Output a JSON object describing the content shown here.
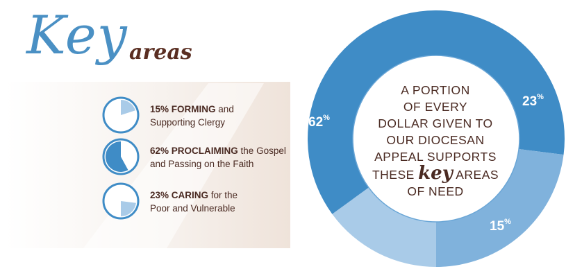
{
  "heading": {
    "key": "Key",
    "areas": "areas"
  },
  "legend": [
    {
      "pct": "15%",
      "keyword": "FORMING",
      "rest1": " and",
      "line2": "Supporting Clergy"
    },
    {
      "pct": "62%",
      "keyword": "PROCLAIMING",
      "rest1": " the Gospel",
      "line2": "and Passing on the Faith"
    },
    {
      "pct": "23%",
      "keyword": "CARING",
      "rest1": " for the",
      "line2": "Poor and Vulnerable"
    }
  ],
  "center": {
    "line1": "A PORTION",
    "line2": "OF EVERY",
    "line3": "DOLLAR GIVEN TO",
    "line4": "OUR DIOCESAN",
    "line5": "APPEAL SUPPORTS",
    "line6_pre": "THESE ",
    "line6_key": "key",
    "line6_post": " AREAS",
    "line7": "OF NEED"
  },
  "colors": {
    "proclaiming": "#3f8cc6",
    "caring": "#80b2dc",
    "forming": "#a9cbe8",
    "heading_blue": "#4a90c4",
    "text_brown": "#4a2a22"
  },
  "chart_data": {
    "type": "pie",
    "donut": true,
    "categories": [
      "FORMING",
      "PROCLAIMING",
      "CARING"
    ],
    "values": [
      15,
      62,
      23
    ],
    "unit": "%",
    "labels": {
      "pct": "%",
      "p62": "62",
      "p23": "23",
      "p15": "15"
    },
    "title": "",
    "legend_placement": "left"
  }
}
